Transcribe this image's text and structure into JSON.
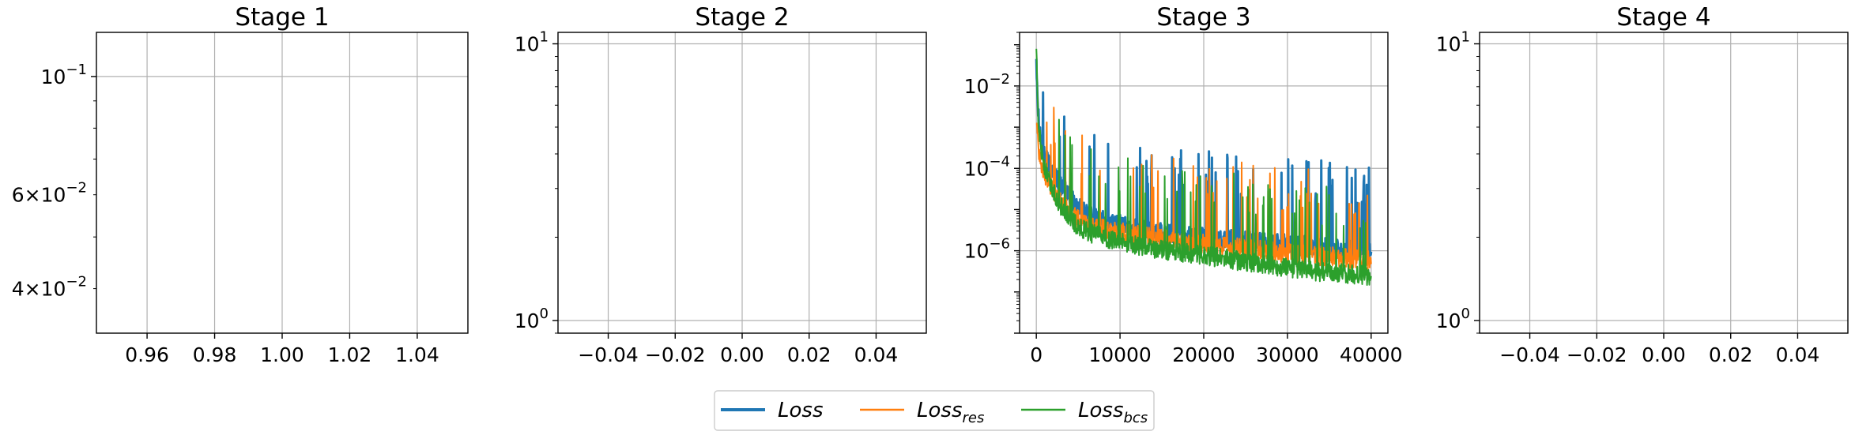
{
  "colors": {
    "loss": "#1f77b4",
    "loss_res": "#ff7f0e",
    "loss_bcs": "#2ca02c",
    "grid": "#b0b0b0"
  },
  "legend": {
    "entries": [
      {
        "base": "Loss",
        "sub": "",
        "color": "#1f77b4"
      },
      {
        "base": "Loss",
        "sub": "res",
        "color": "#ff7f0e"
      },
      {
        "base": "Loss",
        "sub": "bcs",
        "color": "#2ca02c"
      }
    ]
  },
  "chart_data": [
    {
      "type": "line",
      "title": "Stage 1",
      "yscale": "log",
      "xlim": [
        0.945,
        1.055
      ],
      "ylim": [
        0.033,
        0.121
      ],
      "xticks": [
        0.96,
        0.98,
        1.0,
        1.02,
        1.04
      ],
      "xtick_labels": [
        "0.96",
        "0.98",
        "1.00",
        "1.02",
        "1.04"
      ],
      "yticks_major": [
        0.1
      ],
      "ytick_labels": [
        {
          "value": 0.1,
          "mantissa": "",
          "base": "10",
          "exp": "−1"
        },
        {
          "value": 0.06,
          "mantissa": "6×",
          "base": "10",
          "exp": "−2"
        },
        {
          "value": 0.04,
          "mantissa": "4×",
          "base": "10",
          "exp": "−2"
        }
      ],
      "series": []
    },
    {
      "type": "line",
      "title": "Stage 2",
      "yscale": "log",
      "xlim": [
        -0.055,
        0.055
      ],
      "ylim": [
        0.9,
        11
      ],
      "xticks": [
        -0.04,
        -0.02,
        0.0,
        0.02,
        0.04
      ],
      "xtick_labels": [
        "−0.04",
        "−0.02",
        "0.00",
        "0.02",
        "0.04"
      ],
      "yticks_major": [
        1,
        10
      ],
      "ytick_labels": [
        {
          "value": 10,
          "mantissa": "",
          "base": "10",
          "exp": "1"
        },
        {
          "value": 1,
          "mantissa": "",
          "base": "10",
          "exp": "0"
        }
      ],
      "series": []
    },
    {
      "type": "line",
      "title": "Stage 3",
      "yscale": "log",
      "xlim": [
        -2000,
        42000
      ],
      "ylim": [
        1e-08,
        0.2
      ],
      "xticks": [
        0,
        10000,
        20000,
        30000,
        40000
      ],
      "xtick_labels": [
        "0",
        "10000",
        "20000",
        "30000",
        "40000"
      ],
      "yticks_major": [
        1e-06,
        0.0001,
        0.01
      ],
      "ytick_labels": [
        {
          "value": 0.01,
          "mantissa": "",
          "base": "10",
          "exp": "−2"
        },
        {
          "value": 0.0001,
          "mantissa": "",
          "base": "10",
          "exp": "−4"
        },
        {
          "value": 1e-06,
          "mantissa": "",
          "base": "10",
          "exp": "−6"
        }
      ],
      "series": [
        {
          "name": "Loss",
          "x": [
            0,
            200,
            500,
            1000,
            2000,
            3000,
            4000,
            5000,
            6000,
            8000,
            10000,
            12000,
            15000,
            18000,
            20000,
            22000,
            25000,
            28000,
            30000,
            32000,
            35000,
            38000,
            40000
          ],
          "y": [
            0.05,
            0.003,
            0.0006,
            0.0002,
            8e-05,
            4e-05,
            2e-05,
            1.2e-05,
            8e-06,
            5.5e-06,
            4.5e-06,
            3.5e-06,
            2.8e-06,
            2.5e-06,
            2.2e-06,
            2e-06,
            1.8e-06,
            1.6e-06,
            1.5e-06,
            1.4e-06,
            1.2e-06,
            1.1e-06,
            1e-06
          ]
        },
        {
          "name": "Loss_res",
          "x": [
            0,
            200,
            500,
            1000,
            2000,
            3000,
            4000,
            5000,
            6000,
            8000,
            10000,
            12000,
            15000,
            18000,
            20000,
            22000,
            25000,
            28000,
            30000,
            32000,
            35000,
            38000,
            40000
          ],
          "y": [
            0.001,
            0.0004,
            0.00015,
            6e-05,
            3e-05,
            1.5e-05,
            9e-06,
            6e-06,
            4.5e-06,
            3.5e-06,
            3e-06,
            2.5e-06,
            2e-06,
            1.7e-06,
            1.5e-06,
            1.3e-06,
            1.2e-06,
            1e-06,
            9e-07,
            8.5e-07,
            7.5e-07,
            6.5e-07,
            6e-07
          ]
        },
        {
          "name": "Loss_bcs",
          "x": [
            0,
            200,
            500,
            1000,
            2000,
            3000,
            4000,
            5000,
            6000,
            8000,
            10000,
            12000,
            15000,
            18000,
            20000,
            22000,
            25000,
            28000,
            30000,
            32000,
            35000,
            38000,
            40000
          ],
          "y": [
            0.08,
            0.0025,
            0.0004,
            0.0001,
            3e-05,
            1.2e-05,
            6e-06,
            4e-06,
            3e-06,
            2.2e-06,
            1.7e-06,
            1.4e-06,
            1.1e-06,
            9e-07,
            8e-07,
            7e-07,
            5.5e-07,
            4.5e-07,
            4e-07,
            3.5e-07,
            3e-07,
            2.8e-07,
            2.5e-07
          ]
        }
      ]
    },
    {
      "type": "line",
      "title": "Stage 4",
      "yscale": "log",
      "xlim": [
        -0.055,
        0.055
      ],
      "ylim": [
        0.9,
        11
      ],
      "xticks": [
        -0.04,
        -0.02,
        0.0,
        0.02,
        0.04
      ],
      "xtick_labels": [
        "−0.04",
        "−0.02",
        "0.00",
        "0.02",
        "0.04"
      ],
      "yticks_major": [
        1,
        10
      ],
      "ytick_labels": [
        {
          "value": 10,
          "mantissa": "",
          "base": "10",
          "exp": "1"
        },
        {
          "value": 1,
          "mantissa": "",
          "base": "10",
          "exp": "0"
        }
      ],
      "series": []
    }
  ]
}
